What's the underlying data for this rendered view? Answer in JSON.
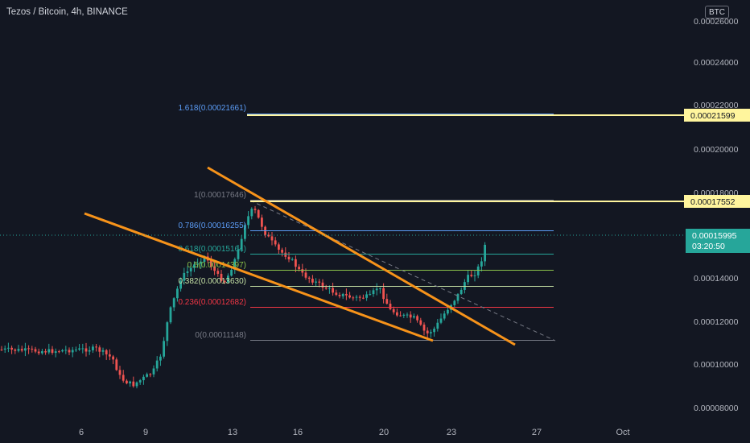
{
  "header": {
    "title": "Tezos / Bitcoin, 4h, BINANCE",
    "currency_button": "BTC"
  },
  "colors": {
    "background": "#131722",
    "up": "#26a69a",
    "down": "#ef5350",
    "trendline": "#f7931a",
    "highlight_line": "#fff59d",
    "axis_text": "#b2b5be"
  },
  "price_axis": {
    "ticks": [
      "0.00026000",
      "0.00024000",
      "0.00022000",
      "0.00020000",
      "0.00018000",
      "0.00014000",
      "0.00012000",
      "0.00010000",
      "0.00008000"
    ],
    "labels": {
      "level_upper": "0.00021599",
      "level_lower": "0.00017552",
      "last_price": "0.00015995",
      "countdown": "03:20:50"
    }
  },
  "time_axis": {
    "ticks": [
      "6",
      "9",
      "13",
      "16",
      "20",
      "23",
      "27",
      "Oct"
    ]
  },
  "fib_levels": [
    {
      "ratio": "1.618",
      "price": "0.00021661",
      "label": "1.618(0.00021661)",
      "color": "#5b9cf6"
    },
    {
      "ratio": "1",
      "price": "0.00017646",
      "label": "1(0.00017646)",
      "color": "#787b86"
    },
    {
      "ratio": "0.786",
      "price": "0.00016255",
      "label": "0.786(0.00016255)",
      "color": "#5b9cf6"
    },
    {
      "ratio": "0.618",
      "price": "0.00015164",
      "label": "0.618(0.00015164)",
      "color": "#26a69a"
    },
    {
      "ratio": "0.5",
      "price": "0.00014397",
      "label": "0.5(0.00014397)",
      "color": "#8bc34a"
    },
    {
      "ratio": "0.382",
      "price": "0.00013630",
      "label": "0.382(0.00013630)",
      "color": "#c4e0a4"
    },
    {
      "ratio": "0.236",
      "price": "0.00012682",
      "label": "0.236(0.00012682)",
      "color": "#f23645"
    },
    {
      "ratio": "0",
      "price": "0.00011148",
      "label": "0(0.00011148)",
      "color": "#787b86"
    }
  ]
}
